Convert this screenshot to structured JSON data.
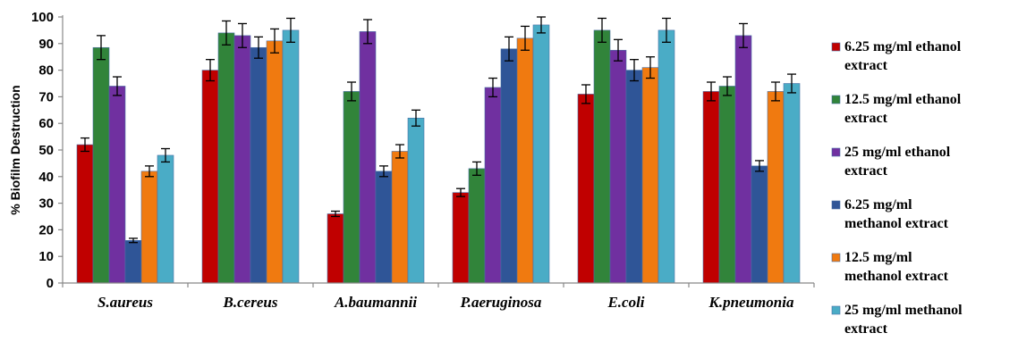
{
  "chart_data": {
    "type": "bar",
    "title": "",
    "xlabel": "",
    "ylabel": "% Biofilm Destruction",
    "ylim": [
      0,
      100
    ],
    "yticks": [
      0,
      10,
      20,
      30,
      40,
      50,
      60,
      70,
      80,
      90,
      100
    ],
    "yticks_text": [
      "0",
      "10",
      "20",
      "30",
      "40",
      "50",
      "60",
      "70",
      "80",
      "90",
      "100"
    ],
    "grid": false,
    "legend_position": "right",
    "categories": [
      "S.aureus",
      "B.cereus",
      "A.baumannii",
      "P.aeruginosa",
      "E.coli",
      "K.pneumonia"
    ],
    "series": [
      {
        "name": "6.25  mg/ml ethanol extract",
        "legend_lines": [
          "6.25  mg/ml ethanol",
          "extract"
        ],
        "color": "#c00000",
        "values": [
          52,
          80,
          26,
          34,
          71,
          72
        ],
        "errors": [
          2.5,
          4,
          1,
          1.5,
          3.5,
          3.5
        ]
      },
      {
        "name": "12.5  mg/ml ethanol extract",
        "legend_lines": [
          "12.5  mg/ml ethanol",
          "extract"
        ],
        "color": "#31843a",
        "values": [
          88.5,
          94,
          72,
          43,
          95,
          74
        ],
        "errors": [
          4.5,
          4.5,
          3.5,
          2.5,
          4.5,
          3.5
        ]
      },
      {
        "name": "25  mg/ml ethanol extract",
        "legend_lines": [
          "25  mg/ml ethanol",
          "extract"
        ],
        "color": "#7030a0",
        "values": [
          74,
          93,
          94.5,
          73.5,
          87.5,
          93
        ],
        "errors": [
          3.5,
          4.5,
          4.5,
          3.5,
          4,
          4.5
        ]
      },
      {
        "name": "6.25  mg/ml methanol extract",
        "legend_lines": [
          "6.25  mg/ml",
          "methanol extract"
        ],
        "color": "#2f5597",
        "values": [
          16,
          88.5,
          42,
          88,
          80,
          44
        ],
        "errors": [
          0.8,
          4,
          2,
          4.5,
          4,
          2
        ]
      },
      {
        "name": "12.5 mg/ml methanol extract",
        "legend_lines": [
          "12.5 mg/ml",
          "methanol extract"
        ],
        "color": "#f07a10",
        "values": [
          42,
          91,
          49.5,
          92,
          81,
          72
        ],
        "errors": [
          2,
          4.5,
          2.5,
          4.5,
          4,
          3.5
        ]
      },
      {
        "name": "25 mg/ml methanol extract",
        "legend_lines": [
          "25 mg/ml methanol",
          "extract"
        ],
        "color": "#4aacc6",
        "values": [
          48,
          95,
          62,
          97,
          95,
          75
        ],
        "errors": [
          2.5,
          4.5,
          3,
          3,
          4.5,
          3.5
        ]
      }
    ]
  }
}
